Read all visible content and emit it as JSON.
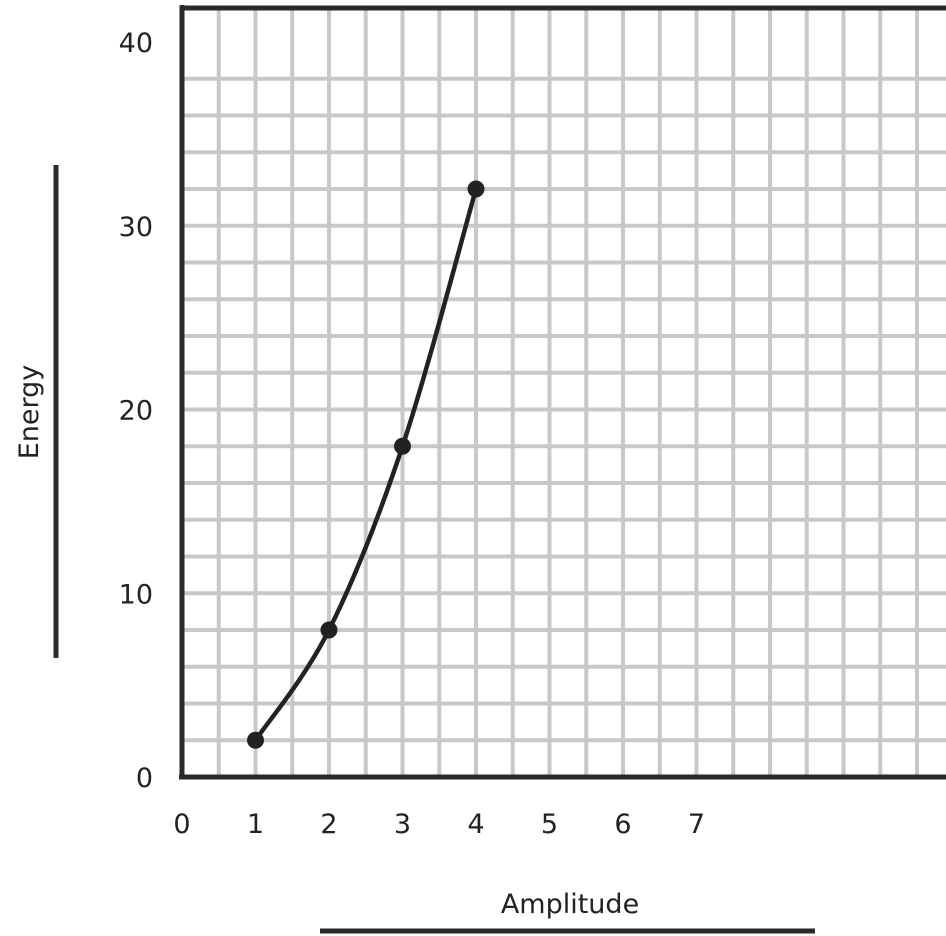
{
  "chart_data": {
    "type": "line",
    "title": "",
    "xlabel": "Amplitude",
    "ylabel": "Energy",
    "x_ticks": [
      "0",
      "1",
      "2",
      "3",
      "4",
      "5",
      "6",
      "7"
    ],
    "y_ticks": [
      "0",
      "10",
      "20",
      "30",
      "40"
    ],
    "xlim": [
      0,
      10.5
    ],
    "ylim": [
      0,
      40
    ],
    "grid": true,
    "grid_minor_x": 0.5,
    "grid_minor_y": 2,
    "series": [
      {
        "x": [
          1,
          2,
          3,
          4
        ],
        "y": [
          2,
          8,
          18,
          32
        ]
      }
    ],
    "colors": {
      "line": "#222222",
      "grid": "#c8c8c8",
      "axis": "#2a2a2a"
    }
  }
}
